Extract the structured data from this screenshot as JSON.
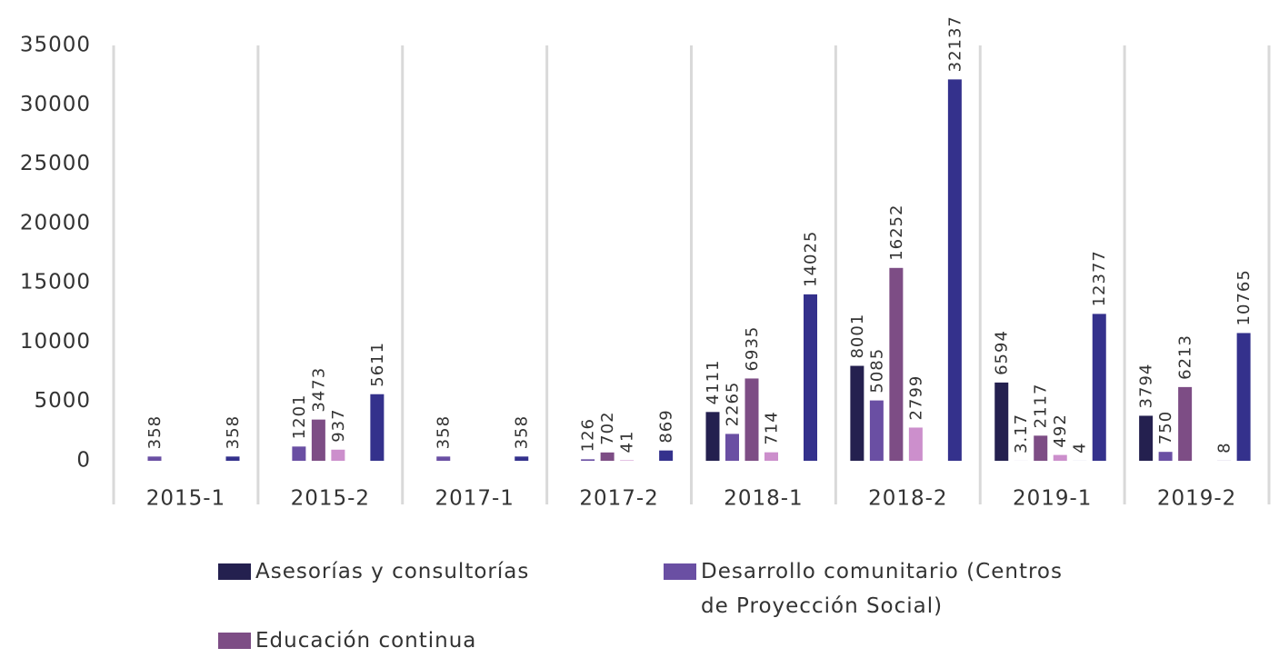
{
  "chart_data": {
    "type": "bar",
    "categories": [
      "2015-1",
      "2015-2",
      "2017-1",
      "2017-2",
      "2018-1",
      "2018-2",
      "2019-1",
      "2019-2"
    ],
    "series": [
      {
        "name": "Asesorías y consultorías",
        "color": "#24204f",
        "values": [
          null,
          null,
          null,
          null,
          4111,
          8001,
          6594,
          3794
        ]
      },
      {
        "name": "Desarrollo comunitario (Centros de Proyección Social)",
        "color": "#6a4fa3",
        "values": [
          358,
          1201,
          358,
          126,
          2265,
          5085,
          3.17,
          750
        ]
      },
      {
        "name": "Educación continua",
        "color": "#7d4d85",
        "values": [
          null,
          3473,
          null,
          702,
          6935,
          16252,
          2117,
          6213
        ]
      },
      {
        "color": "#cc8fcc",
        "values": [
          null,
          937,
          null,
          41,
          714,
          2799,
          492,
          null
        ]
      },
      {
        "color": "#5e3f99",
        "values": [
          null,
          null,
          null,
          null,
          null,
          null,
          4,
          8
        ]
      },
      {
        "color": "#34318c",
        "values": [
          358,
          5611,
          358,
          869,
          14025,
          32137,
          12377,
          10765
        ]
      }
    ],
    "ylim": [
      0,
      35000
    ],
    "yticks": [
      0,
      5000,
      10000,
      15000,
      20000,
      25000,
      30000,
      35000
    ]
  }
}
